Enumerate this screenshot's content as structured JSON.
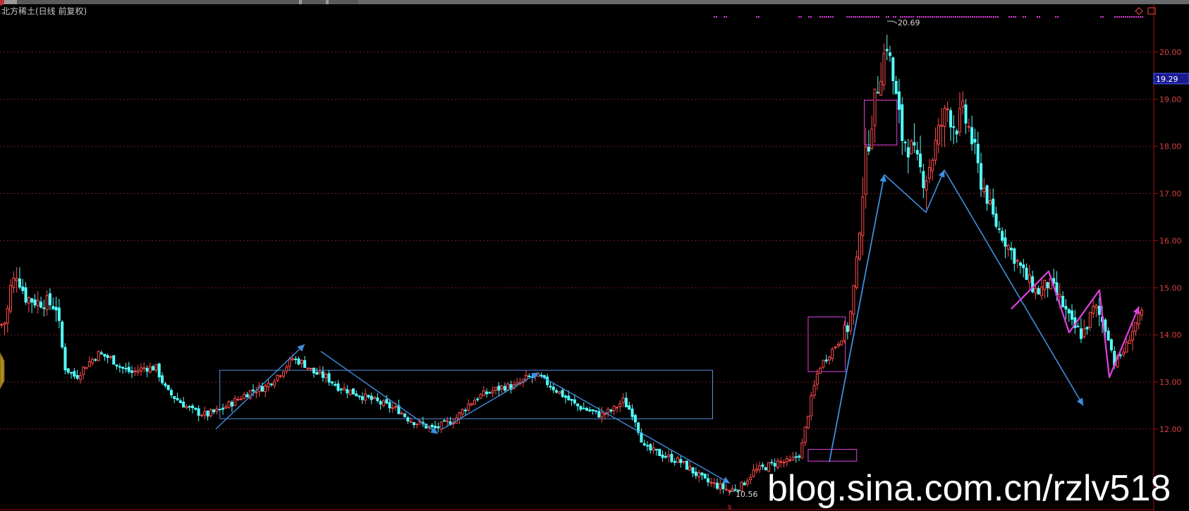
{
  "window": {
    "title": "北方稀土(日线 前复权)"
  },
  "colors": {
    "up": "#ff4d4d",
    "down": "#54ffff",
    "grid": "#7a1b1b",
    "axis": "#a01010",
    "label": "#d84040",
    "arrow": "#3d8fe0",
    "magenta": "#e040e0",
    "box": "#5a8fe0"
  },
  "chart_data": {
    "type": "candlestick",
    "title": "北方稀土(日线 前复权)",
    "ylim": [
      10.3,
      21.0
    ],
    "y_ticks": [
      "12.00",
      "13.00",
      "14.00",
      "15.00",
      "16.00",
      "17.00",
      "18.00",
      "19.00",
      "20.00"
    ],
    "current_price": "19.29",
    "annotations": {
      "high": "20.69",
      "low": "10.56"
    },
    "watermark": "blog.sina.com.cn/rzlv518",
    "bottom_marker": "s",
    "path": [
      [
        0,
        14.2
      ],
      [
        8,
        14.3
      ],
      [
        14,
        15.0
      ],
      [
        22,
        15.3
      ],
      [
        34,
        14.8
      ],
      [
        48,
        14.7
      ],
      [
        60,
        14.7
      ],
      [
        74,
        14.6
      ],
      [
        86,
        13.3
      ],
      [
        100,
        13.1
      ],
      [
        116,
        13.4
      ],
      [
        130,
        13.6
      ],
      [
        146,
        13.5
      ],
      [
        160,
        13.3
      ],
      [
        174,
        13.2
      ],
      [
        190,
        13.3
      ],
      [
        206,
        13.3
      ],
      [
        220,
        12.8
      ],
      [
        236,
        12.6
      ],
      [
        252,
        12.4
      ],
      [
        272,
        12.3
      ],
      [
        290,
        12.4
      ],
      [
        310,
        12.6
      ],
      [
        330,
        12.8
      ],
      [
        350,
        12.9
      ],
      [
        370,
        13.2
      ],
      [
        386,
        13.5
      ],
      [
        400,
        13.4
      ],
      [
        414,
        13.2
      ],
      [
        430,
        13.1
      ],
      [
        446,
        12.9
      ],
      [
        462,
        12.8
      ],
      [
        478,
        12.7
      ],
      [
        494,
        12.6
      ],
      [
        510,
        12.5
      ],
      [
        526,
        12.4
      ],
      [
        540,
        12.2
      ],
      [
        556,
        12.1
      ],
      [
        572,
        12.0
      ],
      [
        586,
        12.1
      ],
      [
        600,
        12.2
      ],
      [
        616,
        12.5
      ],
      [
        632,
        12.7
      ],
      [
        648,
        12.8
      ],
      [
        664,
        12.9
      ],
      [
        680,
        12.9
      ],
      [
        696,
        13.1
      ],
      [
        712,
        13.1
      ],
      [
        728,
        12.9
      ],
      [
        744,
        12.7
      ],
      [
        760,
        12.5
      ],
      [
        776,
        12.4
      ],
      [
        792,
        12.3
      ],
      [
        808,
        12.4
      ],
      [
        822,
        12.6
      ],
      [
        836,
        12.3
      ],
      [
        850,
        11.6
      ],
      [
        866,
        11.5
      ],
      [
        882,
        11.4
      ],
      [
        898,
        11.3
      ],
      [
        914,
        11.1
      ],
      [
        930,
        10.9
      ],
      [
        946,
        10.8
      ],
      [
        962,
        10.7
      ],
      [
        978,
        10.8
      ],
      [
        994,
        11.1
      ],
      [
        1010,
        11.2
      ],
      [
        1026,
        11.3
      ],
      [
        1042,
        11.3
      ],
      [
        1056,
        11.5
      ],
      [
        1068,
        12.5
      ],
      [
        1080,
        13.3
      ],
      [
        1094,
        13.6
      ],
      [
        1108,
        13.9
      ],
      [
        1120,
        14.2
      ],
      [
        1130,
        15.5
      ],
      [
        1140,
        17.5
      ],
      [
        1150,
        18.6
      ],
      [
        1160,
        19.5
      ],
      [
        1170,
        20.2
      ],
      [
        1180,
        19.2
      ],
      [
        1190,
        18.2
      ],
      [
        1200,
        18.0
      ],
      [
        1210,
        17.6
      ],
      [
        1220,
        17.3
      ],
      [
        1230,
        17.8
      ],
      [
        1240,
        18.4
      ],
      [
        1250,
        18.8
      ],
      [
        1260,
        18.4
      ],
      [
        1270,
        18.7
      ],
      [
        1280,
        18.3
      ],
      [
        1290,
        17.5
      ],
      [
        1300,
        17.0
      ],
      [
        1312,
        16.4
      ],
      [
        1326,
        16.0
      ],
      [
        1340,
        15.6
      ],
      [
        1354,
        15.2
      ],
      [
        1368,
        14.9
      ],
      [
        1384,
        15.1
      ],
      [
        1400,
        14.7
      ],
      [
        1414,
        14.2
      ],
      [
        1428,
        14.0
      ],
      [
        1444,
        14.6
      ],
      [
        1460,
        14.1
      ],
      [
        1470,
        13.4
      ],
      [
        1484,
        13.7
      ],
      [
        1496,
        14.2
      ],
      [
        1506,
        14.4
      ]
    ],
    "rect_boxes": [
      {
        "x0": 290,
        "x1": 940,
        "y0": 12.22,
        "y1": 13.25,
        "color": "box"
      },
      {
        "x0": 1066,
        "x1": 1115,
        "y0": 13.22,
        "y1": 14.38,
        "color": "magenta"
      },
      {
        "x0": 1140,
        "x1": 1183,
        "y0": 18.03,
        "y1": 18.98,
        "color": "magenta"
      },
      {
        "x0": 1066,
        "x1": 1130,
        "y0": 11.32,
        "y1": 11.57,
        "color": "magenta"
      }
    ],
    "arrows": [
      {
        "pts": [
          [
            306,
            12.0
          ],
          [
            432,
            13.8
          ]
        ],
        "color": "arrow",
        "w": 1.4
      },
      {
        "pts": [
          [
            455,
            13.65
          ],
          [
            621,
            11.9
          ]
        ],
        "color": "arrow",
        "w": 1.4
      },
      {
        "pts": [
          [
            627,
            12.0
          ],
          [
            764,
            13.2
          ]
        ],
        "color": "arrow",
        "w": 1.4
      },
      {
        "pts": [
          [
            764,
            13.15
          ],
          [
            1035,
            10.85
          ]
        ],
        "color": "arrow",
        "w": 1.4
      },
      {
        "pts": [
          [
            1176,
            11.3
          ],
          [
            1254,
            17.4
          ]
        ],
        "color": "arrow",
        "w": 1.8
      },
      {
        "pts": [
          [
            1254,
            17.4
          ],
          [
            1313,
            16.6
          ],
          [
            1339,
            17.5
          ]
        ],
        "color": "arrow",
        "w": 1.6
      },
      {
        "pts": [
          [
            1339,
            17.5
          ],
          [
            1536,
            12.5
          ]
        ],
        "color": "arrow",
        "w": 1.6
      },
      {
        "pts": [
          [
            1434,
            14.55
          ],
          [
            1487,
            15.35
          ],
          [
            1516,
            14.05
          ],
          [
            1559,
            14.95
          ],
          [
            1573,
            13.1
          ],
          [
            1615,
            14.6
          ]
        ],
        "color": "magenta",
        "w": 2.2
      }
    ]
  }
}
